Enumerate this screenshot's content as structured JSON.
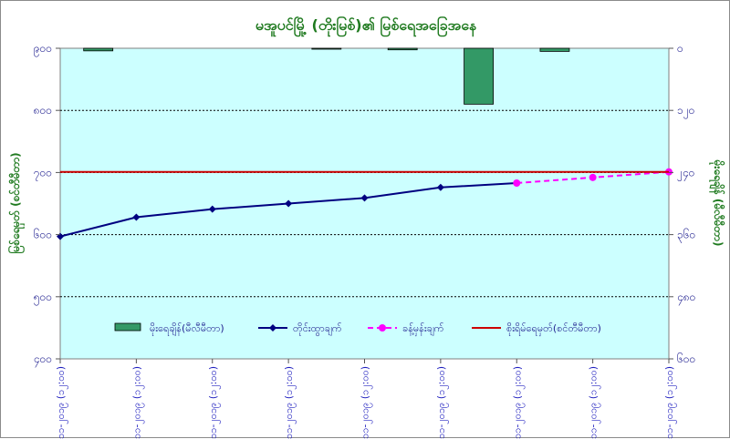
{
  "chart_data": {
    "type": "line",
    "title": "မအူပင်မြို့ (တိုးမြစ်)၏ မြစ်ရေအခြေအနေ",
    "y_left_label": "မြစ်ရေမှတ် (စင်တီမီတာ)",
    "y_right_label": "မိုးရေချိန် (မီလီမီတာ)",
    "y_left_ticks": [
      "၉၀၀",
      "၈၀၀",
      "၇၀၀",
      "၆၀၀",
      "၅၀၀",
      "၄၀၀"
    ],
    "y_right_ticks": [
      "၀",
      "၁၂၀",
      "၂၄၀",
      "၃၆၀",
      "၄၈၀",
      "၆၀၀"
    ],
    "y_left_range": [
      400,
      900
    ],
    "y_right_range": [
      600,
      0
    ],
    "categories": [
      "၉-၁၁-၂၀၁၉ (၁၂:၀၀)",
      "၁၀-၁၁-၂၀၁၉ (၁၂:၀၀)",
      "၁၁-၁၁-၂၀၁၉ (၁၂:၀၀)",
      "၁၂-၁၁-၂၀၁၉ (၁၂:၀၀)",
      "၁၃-၁၁-၂၀၁၉ (၁၂:၀၀)",
      "၁၄-၁၁-၂၀၁၉ (၁၂:၀၀)",
      "၁၅-၁၁-၂၀၁၉ (၁၂:၀၀)",
      "၁၆-၁၁-၂၀၁၉ (၁၂:၀၀)",
      "၁၇-၁၁-၂၀၁၉ (၁၂:၀၀)"
    ],
    "grid": true,
    "legend_placement": "bottom",
    "series": [
      {
        "name": "မိုးရေချိန်(မီလီမီတာ)",
        "type": "bar",
        "axis": "right",
        "color": "#339966",
        "values": [
          5,
          null,
          null,
          1,
          3,
          108,
          6,
          null,
          null
        ]
      },
      {
        "name": "တိုင်းထွာချက်",
        "type": "line",
        "axis": "left",
        "color": "#000080",
        "marker": "diamond",
        "values": [
          597,
          628,
          641,
          650,
          659,
          676,
          683,
          null,
          null
        ]
      },
      {
        "name": "ခန့်မှန်းချက်",
        "type": "line",
        "axis": "left",
        "color": "#ff00ff",
        "marker": "circle",
        "dashed": true,
        "values": [
          null,
          null,
          null,
          null,
          null,
          null,
          683,
          692,
          701
        ]
      },
      {
        "name": "စိုးရိမ်ရေမှတ်(စင်တီမီတာ)",
        "type": "hline",
        "axis": "left",
        "color": "#cc0000",
        "value": 701
      }
    ]
  }
}
